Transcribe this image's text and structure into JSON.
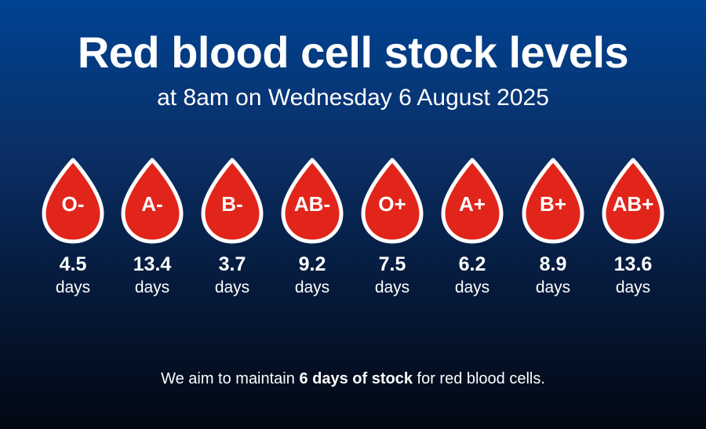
{
  "header": {
    "title": "Red blood cell stock levels",
    "subtitle": "at 8am on Wednesday 6 August 2025"
  },
  "colors": {
    "drop_fill": "#e1251b",
    "drop_outline": "#ffffff",
    "background_top": "#004393",
    "background_bottom": "#010812"
  },
  "blood_types": [
    {
      "type": "O-",
      "value": "4.5",
      "unit": "days"
    },
    {
      "type": "A-",
      "value": "13.4",
      "unit": "days"
    },
    {
      "type": "B-",
      "value": "3.7",
      "unit": "days"
    },
    {
      "type": "AB-",
      "value": "9.2",
      "unit": "days"
    },
    {
      "type": "O+",
      "value": "7.5",
      "unit": "days"
    },
    {
      "type": "A+",
      "value": "6.2",
      "unit": "days"
    },
    {
      "type": "B+",
      "value": "8.9",
      "unit": "days"
    },
    {
      "type": "AB+",
      "value": "13.6",
      "unit": "days"
    }
  ],
  "footer": {
    "text_before": "We aim to maintain ",
    "text_bold": "6 days of stock",
    "text_after": " for red blood cells."
  }
}
